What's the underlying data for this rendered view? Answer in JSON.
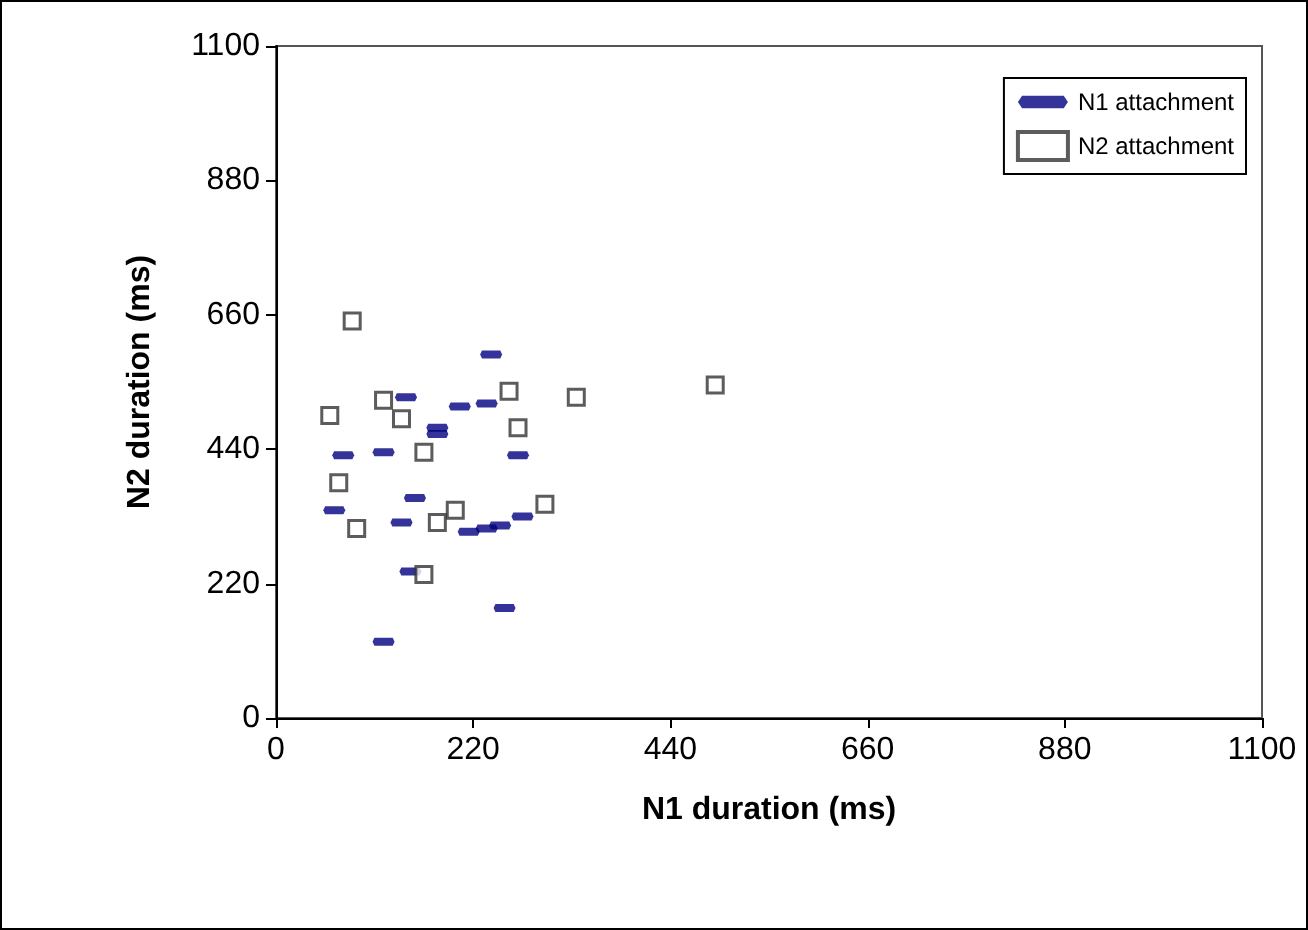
{
  "chart_data": {
    "type": "scatter",
    "xlabel": "N1 duration (ms)",
    "ylabel": "N2 duration (ms)",
    "xlim": [
      0,
      1100
    ],
    "xticks": [
      0,
      220,
      440,
      660,
      880,
      {
        "value": 1100,
        "label": "1100"
      }
    ],
    "ylim": [
      0,
      1100
    ],
    "yticks": [
      0,
      220,
      440,
      660,
      880,
      {
        "value": 1100,
        "label": "1100"
      }
    ],
    "grid": false,
    "legend": "top right",
    "series": [
      {
        "name": "N1 attachment",
        "color": "#000080",
        "x": [
          240,
          145,
          205,
          235,
          180,
          180,
          75,
          120,
          270,
          155,
          65,
          140,
          215,
          235,
          250,
          275,
          150,
          255,
          120
        ],
        "values": [
          595,
          525,
          510,
          515,
          475,
          465,
          430,
          435,
          430,
          360,
          340,
          320,
          305,
          310,
          315,
          330,
          240,
          180,
          125
        ]
      },
      {
        "name": "N2 attachment",
        "color": "#333333",
        "marker": "square",
        "x": [
          85,
          120,
          60,
          140,
          260,
          335,
          490,
          270,
          165,
          70,
          200,
          180,
          300,
          90,
          165
        ],
        "values": [
          650,
          520,
          495,
          490,
          535,
          525,
          545,
          475,
          435,
          385,
          340,
          320,
          350,
          310,
          235
        ]
      }
    ]
  }
}
